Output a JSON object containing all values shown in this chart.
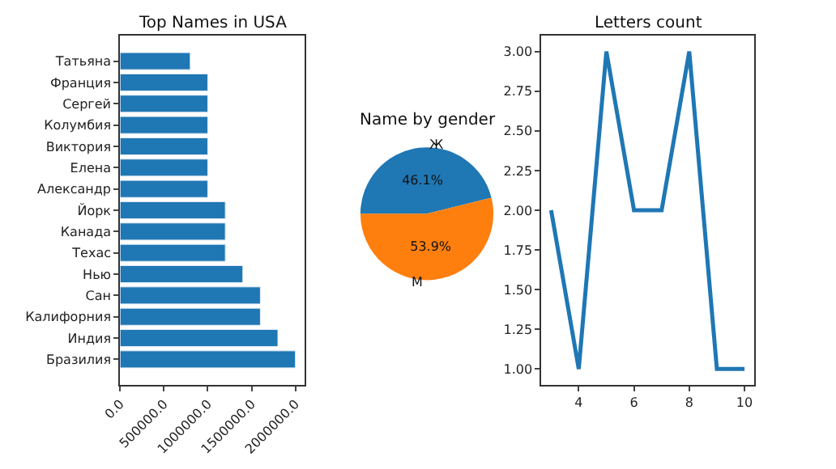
{
  "chart_data": [
    {
      "type": "bar",
      "orientation": "horizontal",
      "title": "Top Names in USA",
      "color": "#1f77b4",
      "categories": [
        "Татьяна",
        "Франция",
        "Сергей",
        "Колумбия",
        "Виктория",
        "Елена",
        "Александр",
        "Йорк",
        "Канада",
        "Техас",
        "Нью",
        "Сан",
        "Калифорния",
        "Индия",
        "Бразилия"
      ],
      "values": [
        800000,
        1000000,
        1000000,
        1000000,
        1000000,
        1000000,
        1000000,
        1200000,
        1200000,
        1200000,
        1400000,
        1600000,
        1600000,
        1800000,
        2000000
      ],
      "xlim": [
        0,
        2100000
      ],
      "xticks": [
        {
          "value": 0,
          "label": "0.0"
        },
        {
          "value": 500000,
          "label": "500000.0"
        },
        {
          "value": 1000000,
          "label": "1000000.0"
        },
        {
          "value": 1500000,
          "label": "1500000.0"
        },
        {
          "value": 2000000,
          "label": "2000000.0"
        }
      ]
    },
    {
      "type": "pie",
      "title": "Name by gender",
      "categories": [
        "Ж",
        "М"
      ],
      "values": [
        46.1,
        53.9
      ],
      "colors": [
        "#1f77b4",
        "#ff7f0e"
      ],
      "value_labels": [
        "46.1%",
        "53.9%"
      ]
    },
    {
      "type": "line",
      "title": "Letters count",
      "color": "#1f77b4",
      "x": [
        3,
        4,
        5,
        6,
        7,
        8,
        9,
        10
      ],
      "values": [
        2,
        1,
        3,
        2,
        2,
        3,
        1,
        1
      ],
      "xlim": [
        2.65,
        10.35
      ],
      "ylim": [
        0.9,
        3.1
      ],
      "xticks": [
        4,
        6,
        8,
        10
      ],
      "yticks": [
        {
          "value": 1,
          "label": "1.00"
        },
        {
          "value": 1.25,
          "label": "1.25"
        },
        {
          "value": 1.5,
          "label": "1.50"
        },
        {
          "value": 1.75,
          "label": "1.75"
        },
        {
          "value": 2,
          "label": "2.00"
        },
        {
          "value": 2.25,
          "label": "2.25"
        },
        {
          "value": 2.5,
          "label": "2.50"
        },
        {
          "value": 2.75,
          "label": "2.75"
        },
        {
          "value": 3,
          "label": "3.00"
        }
      ]
    }
  ]
}
